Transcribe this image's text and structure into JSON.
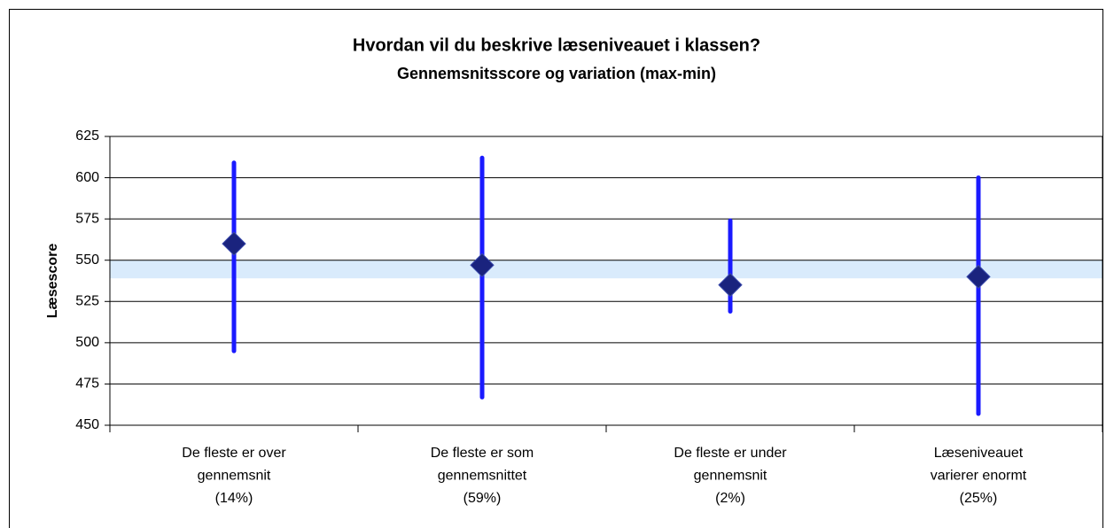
{
  "chart_data": {
    "type": "range",
    "title": "Hvordan vil du beskrive læseniveauet i klassen?",
    "subtitle": "Gennemsnitsscore og variation (max-min)",
    "y_label": "Læsescore",
    "categories": [
      [
        "De fleste er over",
        "gennemsnit",
        "(14%)"
      ],
      [
        "De fleste er som",
        "gennemsnittet",
        "(59%)"
      ],
      [
        "De fleste er under",
        "gennemsnit",
        "(2%)"
      ],
      [
        "Læseniveauet",
        "varierer enormt",
        "(25%)"
      ]
    ],
    "high": [
      609,
      612,
      574,
      600
    ],
    "low": [
      495,
      467,
      519,
      457
    ],
    "values": [
      560,
      547,
      535,
      540
    ],
    "reference_band": [
      539,
      550
    ],
    "range_color": "#1a1aff",
    "marker_color": "#1a237e",
    "band_color": "#cfe6fb",
    "ylim": [
      450,
      625
    ],
    "yticks": [
      450,
      475,
      500,
      525,
      550,
      575,
      600,
      625
    ],
    "grid": true
  }
}
